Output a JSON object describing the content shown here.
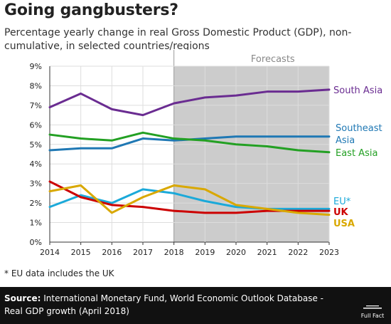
{
  "header": {
    "title": "Going gangbusters?",
    "subtitle": "Percentage yearly change in real Gross Domestic Product (GDP), non-cumulative, in selected countries/regions"
  },
  "chart_data": {
    "type": "line",
    "x": [
      2014,
      2015,
      2016,
      2017,
      2018,
      2019,
      2020,
      2021,
      2022,
      2023
    ],
    "ylim": [
      0,
      9
    ],
    "yticks": [
      "0%",
      "1%",
      "2%",
      "3%",
      "4%",
      "5%",
      "6%",
      "7%",
      "8%",
      "9%"
    ],
    "grid": true,
    "forecast_region": {
      "label": "Forecasts",
      "from": 2018,
      "to": 2023,
      "color": "#cccccc"
    },
    "series": [
      {
        "name": "South Asia",
        "color": "#6a2c91",
        "values": [
          6.9,
          7.6,
          6.8,
          6.5,
          7.1,
          7.4,
          7.5,
          7.7,
          7.7,
          7.8
        ]
      },
      {
        "name": "Southeast Asia",
        "color": "#1f78b4",
        "values": [
          4.7,
          4.8,
          4.8,
          5.3,
          5.2,
          5.3,
          5.4,
          5.4,
          5.4,
          5.4
        ]
      },
      {
        "name": "East Asia",
        "color": "#23a023",
        "values": [
          5.5,
          5.3,
          5.2,
          5.6,
          5.3,
          5.2,
          5.0,
          4.9,
          4.7,
          4.6
        ]
      },
      {
        "name": "EU*",
        "color": "#1ba9d9",
        "values": [
          1.8,
          2.4,
          2.0,
          2.7,
          2.5,
          2.1,
          1.8,
          1.7,
          1.7,
          1.7
        ]
      },
      {
        "name": "UK",
        "color": "#cc0000",
        "values": [
          3.1,
          2.3,
          1.9,
          1.8,
          1.6,
          1.5,
          1.5,
          1.6,
          1.6,
          1.6
        ]
      },
      {
        "name": "USA",
        "color": "#d9a800",
        "values": [
          2.6,
          2.9,
          1.5,
          2.3,
          2.9,
          2.7,
          1.9,
          1.7,
          1.5,
          1.4
        ]
      }
    ]
  },
  "labels": {
    "south_asia": "South Asia",
    "southeast_line1": "Southeast",
    "southeast_line2": "Asia",
    "east_asia": "East Asia",
    "eu": "EU*",
    "uk": "UK",
    "usa": "USA"
  },
  "footnote": "* EU data includes the UK",
  "source": {
    "label": "Source:",
    "text": "International Monetary Fund, World Economic Outlook Database - Real GDP growth (April 2018)"
  },
  "logo_text": "Full Fact"
}
